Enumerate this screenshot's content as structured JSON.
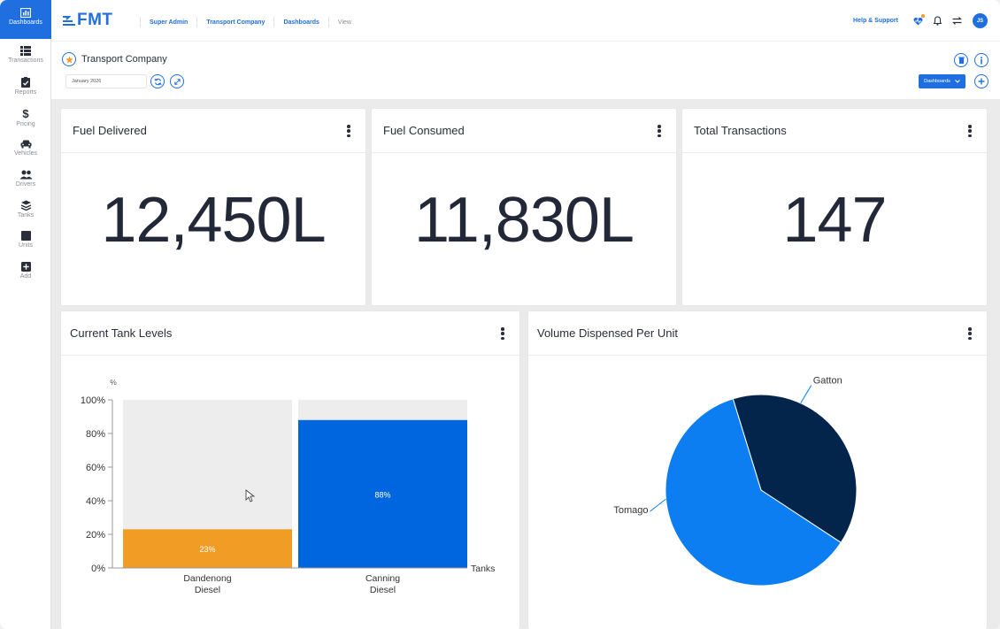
{
  "sidebar": {
    "items": [
      {
        "label": "Dashboards",
        "icon": "bar-chart-icon"
      },
      {
        "label": "Transactions",
        "icon": "list-icon"
      },
      {
        "label": "Reports",
        "icon": "clipboard-check-icon"
      },
      {
        "label": "Pricing",
        "icon": "dollar-icon"
      },
      {
        "label": "Vehicles",
        "icon": "car-icon"
      },
      {
        "label": "Drivers",
        "icon": "users-icon"
      },
      {
        "label": "Tanks",
        "icon": "layers-icon"
      },
      {
        "label": "Units",
        "icon": "square-icon"
      },
      {
        "label": "Add",
        "icon": "plus-square-icon"
      }
    ]
  },
  "topbar": {
    "logo": "FMT",
    "breadcrumbs": [
      {
        "label": "Super Admin"
      },
      {
        "label": "Transport Company"
      },
      {
        "label": "Dashboards"
      },
      {
        "label": "View"
      }
    ],
    "help_label": "Help & Support",
    "avatar_initials": "JS"
  },
  "header": {
    "title": "Transport Company",
    "date_value": "January 2026",
    "dashboards_button": "Dashboards"
  },
  "kpis": [
    {
      "title": "Fuel Delivered",
      "value": "12,450L"
    },
    {
      "title": "Fuel Consumed",
      "value": "11,830L"
    },
    {
      "title": "Total Transactions",
      "value": "147"
    }
  ],
  "colors": {
    "accent": "#1f6fe0",
    "orange": "#f09c25",
    "bar_blue": "#0066e0",
    "track_grey": "#ededed",
    "pie_dark": "#03254c",
    "pie_light": "#0c7ef2"
  },
  "chart_data": [
    {
      "type": "bar",
      "title": "Current Tank Levels",
      "ylabel": "%",
      "xlabel": "Tanks",
      "ylim": [
        0,
        100
      ],
      "yticks": [
        "0%",
        "20%",
        "40%",
        "60%",
        "80%",
        "100%"
      ],
      "categories": [
        [
          "Dandenong",
          "Diesel"
        ],
        [
          "Canning",
          "Diesel"
        ]
      ],
      "values": [
        23,
        88
      ],
      "value_labels": [
        "23%",
        "88%"
      ],
      "stacked_remainder": true
    },
    {
      "type": "pie",
      "title": "Volume Dispensed Per Unit",
      "slices": [
        {
          "label": "Gatton",
          "value": 39
        },
        {
          "label": "Tomago",
          "value": 61
        }
      ]
    }
  ]
}
